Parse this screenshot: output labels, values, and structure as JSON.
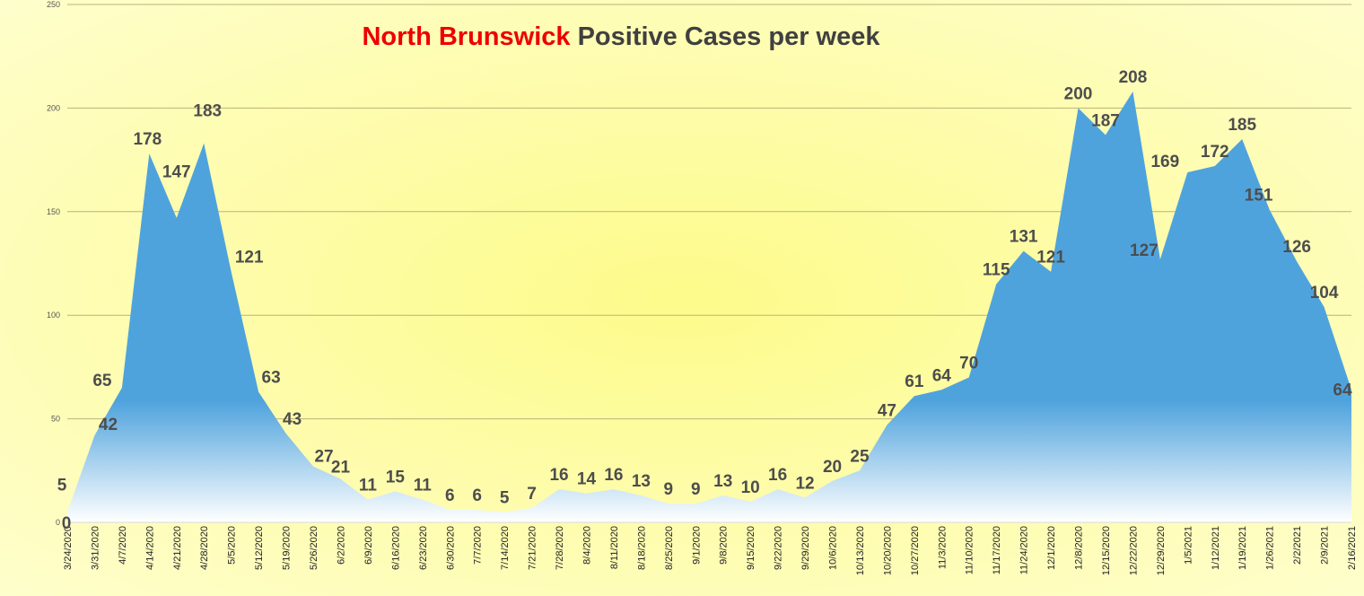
{
  "chart_data": {
    "type": "area",
    "title_town": "North Brunswick",
    "title_rest": " Positive Cases per week",
    "ylim": [
      0,
      250
    ],
    "yticks": [
      0,
      50,
      100,
      150,
      200,
      250
    ],
    "grid": true,
    "categories": [
      "3/24/2020",
      "3/31/2020",
      "4/7/2020",
      "4/14/2020",
      "4/21/2020",
      "4/28/2020",
      "5/5/2020",
      "5/12/2020",
      "5/19/2020",
      "5/26/2020",
      "6/2/2020",
      "6/9/2020",
      "6/16/2020",
      "6/23/2020",
      "6/30/2020",
      "7/7/2020",
      "7/14/2020",
      "7/21/2020",
      "7/28/2020",
      "8/4/2020",
      "8/11/2020",
      "8/18/2020",
      "8/25/2020",
      "9/1/2020",
      "9/8/2020",
      "9/15/2020",
      "9/22/2020",
      "9/29/2020",
      "10/6/2020",
      "10/13/2020",
      "10/20/2020",
      "10/27/2020",
      "11/3/2020",
      "11/10/2020",
      "11/17/2020",
      "11/24/2020",
      "12/1/2020",
      "12/8/2020",
      "12/15/2020",
      "12/22/2020",
      "12/29/2020",
      "1/5/2021",
      "1/12/2021",
      "1/19/2021",
      "1/26/2021",
      "2/2/2021",
      "2/9/2021",
      "2/16/2021"
    ],
    "values": [
      5,
      42,
      65,
      178,
      147,
      183,
      121,
      63,
      43,
      27,
      21,
      11,
      15,
      11,
      6,
      6,
      5,
      7,
      16,
      14,
      16,
      13,
      9,
      9,
      13,
      10,
      16,
      12,
      20,
      25,
      47,
      61,
      64,
      70,
      115,
      131,
      121,
      200,
      187,
      208,
      127,
      169,
      172,
      185,
      151,
      126,
      104,
      64
    ],
    "extra_label": "0",
    "colors": {
      "area_top": "#4fa3dd",
      "area_bottom": "#ffffff",
      "bg_center": "#fdfb8a",
      "bg_edge": "#fefed0",
      "title_town": "#ee0000",
      "title_rest": "#404040",
      "labels": "#4d4d4d"
    }
  }
}
